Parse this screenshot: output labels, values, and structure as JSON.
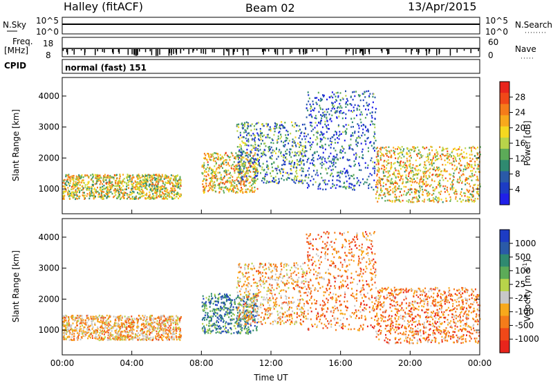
{
  "header": {
    "station": "Halley (fitACF)",
    "beam": "Beam 02",
    "date": "13/Apr/2015",
    "cpid": "normal (fast) 151"
  },
  "strip_labels": {
    "nsky": "N.Sky",
    "freq_line1": "Freq.",
    "freq_line2": "[MHz]",
    "cpid": "CPID",
    "nsearch": "N.Search",
    "nave": "Nave",
    "nsky_ticks": [
      "10^5",
      "10^0"
    ],
    "nsearch_ticks": [
      "10^5",
      "10^0"
    ],
    "freq_ticks": [
      "18",
      "8"
    ],
    "nave_ticks": [
      "60",
      "0"
    ]
  },
  "power_colorbar": {
    "title": "Power [dB]",
    "ticks": [
      "28",
      "24",
      "20",
      "16",
      "12",
      "8",
      "4"
    ],
    "colors": [
      "#e8251c",
      "#f04818",
      "#f57c1a",
      "#f8a91c",
      "#f5d820",
      "#b8d44a",
      "#5cab58",
      "#2f8a70",
      "#2a5aa8",
      "#1d3cc4",
      "#2020e8"
    ]
  },
  "velocity_colorbar": {
    "title": "Velocity [m s",
    "title_sup": "-1",
    "title_end": "]",
    "ticks": [
      "1000",
      "500",
      "100",
      "25",
      "-25",
      "-100",
      "-500",
      "-1000"
    ],
    "colors": [
      "#1d3cc4",
      "#2a5aa8",
      "#2f8a70",
      "#5cab58",
      "#b8d44a",
      "#c8c8c8",
      "#f8a91c",
      "#f57c1a",
      "#f04818",
      "#e8251c"
    ]
  },
  "chart_data": [
    {
      "type": "heatmap",
      "panel": "power",
      "ylabel": "Slant Range [km]",
      "ylim": [
        200,
        4600
      ],
      "yticks": [
        1000,
        2000,
        3000,
        4000
      ],
      "xlim_hours": [
        0,
        24
      ],
      "xticks": [
        "00:00",
        "04:00",
        "08:00",
        "12:00",
        "16:00",
        "20:00",
        "00:00"
      ],
      "colorbar": "Power [dB]",
      "scatter_regions": [
        {
          "t_start": 0.0,
          "t_end": 6.8,
          "range_low": 700,
          "range_high": 1500,
          "value": 18
        },
        {
          "t_start": 8.0,
          "t_end": 11.2,
          "range_low": 900,
          "range_high": 2200,
          "value": 20
        },
        {
          "t_start": 10.0,
          "t_end": 14.0,
          "range_low": 1200,
          "range_high": 3200,
          "value": 10
        },
        {
          "t_start": 14.0,
          "t_end": 18.0,
          "range_low": 1000,
          "range_high": 4200,
          "value": 6
        },
        {
          "t_start": 18.0,
          "t_end": 24.0,
          "range_low": 600,
          "range_high": 2400,
          "value": 20
        }
      ]
    },
    {
      "type": "heatmap",
      "panel": "velocity",
      "ylabel": "Slant Range [km]",
      "xlabel": "Time UT",
      "ylim": [
        200,
        4600
      ],
      "yticks": [
        1000,
        2000,
        3000,
        4000
      ],
      "xlim_hours": [
        0,
        24
      ],
      "xticks": [
        "00:00",
        "04:00",
        "08:00",
        "12:00",
        "16:00",
        "20:00",
        "00:00"
      ],
      "colorbar": "Velocity [m s-1]",
      "scatter_regions": [
        {
          "t_start": 0.0,
          "t_end": 6.8,
          "range_low": 700,
          "range_high": 1500,
          "value": -100
        },
        {
          "t_start": 8.0,
          "t_end": 11.2,
          "range_low": 900,
          "range_high": 2200,
          "value": 100
        },
        {
          "t_start": 10.0,
          "t_end": 14.0,
          "range_low": 1200,
          "range_high": 3200,
          "value": -100
        },
        {
          "t_start": 14.0,
          "t_end": 18.0,
          "range_low": 1000,
          "range_high": 4200,
          "value": -500
        },
        {
          "t_start": 18.0,
          "t_end": 24.0,
          "range_low": 600,
          "range_high": 2400,
          "value": -500
        }
      ]
    }
  ]
}
